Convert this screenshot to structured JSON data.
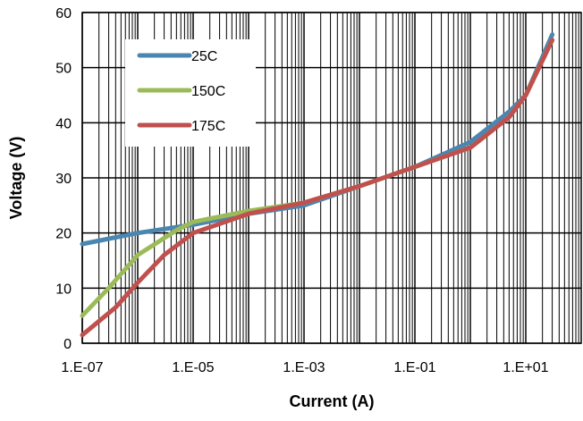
{
  "chart_data": {
    "type": "line",
    "xlabel": "Current (A)",
    "ylabel": "Voltage (V)",
    "xscale": "log",
    "xlim": [
      1e-07,
      100
    ],
    "ylim": [
      0,
      60
    ],
    "x_tick_values": [
      1e-07,
      1e-05,
      0.001,
      0.1,
      10
    ],
    "x_tick_labels": [
      "1.E-07",
      "1.E-05",
      "1.E-03",
      "1.E-01",
      "1.E+01"
    ],
    "y_tick_values": [
      0,
      10,
      20,
      30,
      40,
      50,
      60
    ],
    "y_tick_labels": [
      "0",
      "10",
      "20",
      "30",
      "40",
      "50",
      "60"
    ],
    "grid": true,
    "legend_position": "top-left",
    "series": [
      {
        "name": "25C",
        "color": "#4a86b0",
        "x": [
          1e-07,
          1e-06,
          1e-05,
          0.0001,
          0.001,
          0.01,
          0.1,
          1,
          5,
          10,
          30
        ],
        "y": [
          18,
          20,
          21.5,
          23.5,
          25,
          28.5,
          32,
          36.5,
          42,
          45,
          56
        ]
      },
      {
        "name": "150C",
        "color": "#9bbb59",
        "x": [
          1e-07,
          3e-07,
          1e-06,
          5e-06,
          1e-05,
          0.0001,
          0.001,
          0.01,
          0.1,
          1,
          5,
          10,
          30
        ],
        "y": [
          5,
          10,
          16,
          20.5,
          22,
          24,
          25.5,
          28.5,
          32,
          35.5,
          41,
          45,
          55
        ]
      },
      {
        "name": "175C",
        "color": "#c0504d",
        "x": [
          1e-07,
          4e-07,
          1e-06,
          3e-06,
          1e-05,
          0.0001,
          0.001,
          0.01,
          0.1,
          1,
          5,
          10,
          30
        ],
        "y": [
          1.5,
          6.5,
          11,
          16,
          20,
          23.5,
          25.5,
          28.5,
          32,
          35.5,
          41,
          45,
          55
        ]
      }
    ]
  }
}
